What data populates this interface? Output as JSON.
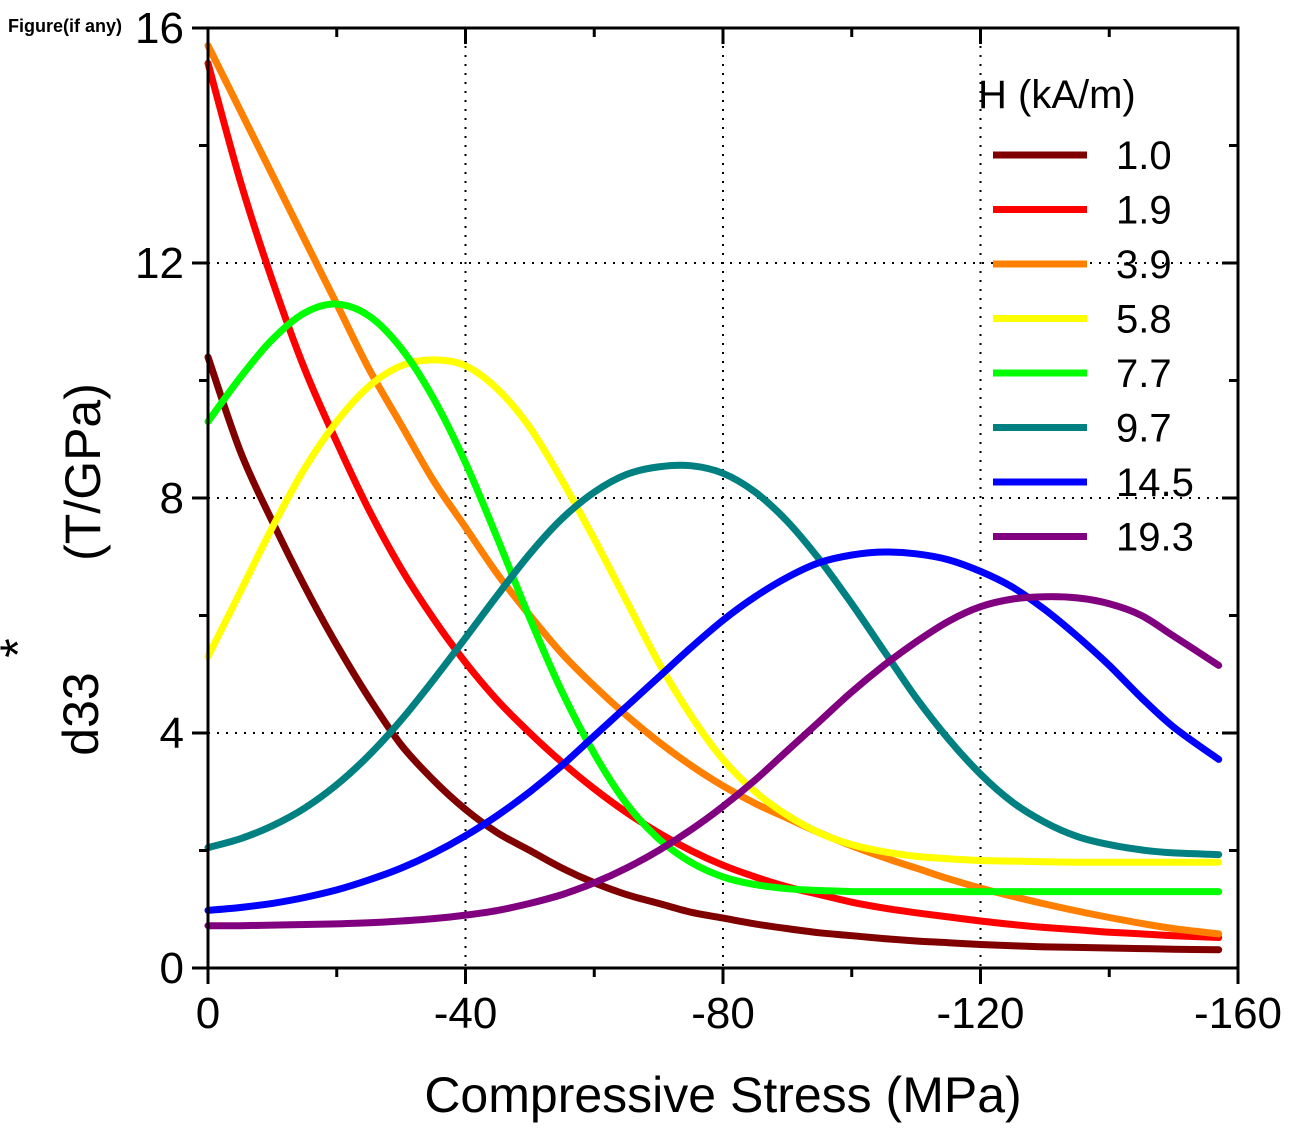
{
  "figure_label": "Figure(if any)",
  "chart_data": {
    "type": "line",
    "title": "",
    "xlabel": "Compressive Stress (MPa)",
    "ylabel_main": "d33",
    "ylabel_superscript": "*",
    "ylabel_unit": "(T/GPa)",
    "xlim": [
      0,
      -160
    ],
    "ylim": [
      0,
      16
    ],
    "xticks": [
      0,
      -40,
      -80,
      -120,
      -160
    ],
    "xtick_labels": [
      "0",
      "-40",
      "-80",
      "-120",
      "-160"
    ],
    "yticks": [
      0,
      4,
      8,
      12,
      16
    ],
    "ytick_labels": [
      "0",
      "4",
      "8",
      "12",
      "16"
    ],
    "grid": "dotted",
    "legend_title": "H (kA/m)",
    "legend_position": "top-right",
    "series": [
      {
        "name": "1.0",
        "color": "#800000",
        "x": [
          0,
          -5,
          -10,
          -15,
          -20,
          -25,
          -30,
          -35,
          -40,
          -45,
          -50,
          -55,
          -60,
          -65,
          -70,
          -75,
          -80,
          -85,
          -90,
          -95,
          -100,
          -105,
          -110,
          -115,
          -120,
          -125,
          -130,
          -135,
          -140,
          -145,
          -150,
          -157
        ],
        "y": [
          10.4,
          8.8,
          7.6,
          6.5,
          5.5,
          4.6,
          3.8,
          3.2,
          2.7,
          2.3,
          2.0,
          1.7,
          1.45,
          1.25,
          1.1,
          0.95,
          0.85,
          0.75,
          0.67,
          0.6,
          0.55,
          0.5,
          0.46,
          0.43,
          0.4,
          0.38,
          0.36,
          0.35,
          0.34,
          0.33,
          0.32,
          0.31
        ]
      },
      {
        "name": "1.9",
        "color": "#ff0000",
        "x": [
          0,
          -5,
          -10,
          -15,
          -20,
          -25,
          -30,
          -35,
          -40,
          -45,
          -50,
          -55,
          -60,
          -65,
          -70,
          -75,
          -80,
          -85,
          -90,
          -95,
          -100,
          -105,
          -110,
          -115,
          -120,
          -125,
          -130,
          -135,
          -140,
          -145,
          -150,
          -157
        ],
        "y": [
          15.4,
          13.4,
          11.7,
          10.2,
          8.95,
          7.8,
          6.8,
          5.95,
          5.2,
          4.55,
          4.0,
          3.5,
          3.05,
          2.65,
          2.3,
          2.0,
          1.75,
          1.55,
          1.38,
          1.25,
          1.12,
          1.02,
          0.94,
          0.87,
          0.8,
          0.74,
          0.69,
          0.65,
          0.61,
          0.58,
          0.55,
          0.52
        ]
      },
      {
        "name": "3.9",
        "color": "#ff8000",
        "x": [
          0,
          -5,
          -10,
          -15,
          -20,
          -25,
          -30,
          -35,
          -40,
          -45,
          -50,
          -55,
          -60,
          -65,
          -70,
          -75,
          -80,
          -85,
          -90,
          -95,
          -100,
          -105,
          -110,
          -115,
          -120,
          -125,
          -130,
          -135,
          -140,
          -145,
          -150,
          -157
        ],
        "y": [
          15.7,
          14.6,
          13.5,
          12.4,
          11.3,
          10.2,
          9.25,
          8.3,
          7.5,
          6.7,
          6.0,
          5.35,
          4.8,
          4.3,
          3.85,
          3.45,
          3.1,
          2.8,
          2.55,
          2.3,
          2.08,
          1.88,
          1.7,
          1.52,
          1.36,
          1.22,
          1.09,
          0.97,
          0.86,
          0.76,
          0.67,
          0.58
        ]
      },
      {
        "name": "5.8",
        "color": "#ffff00",
        "x": [
          0,
          -5,
          -10,
          -15,
          -20,
          -25,
          -30,
          -35,
          -40,
          -45,
          -50,
          -55,
          -60,
          -65,
          -70,
          -75,
          -80,
          -85,
          -90,
          -95,
          -100,
          -105,
          -110,
          -115,
          -120,
          -125,
          -130,
          -135,
          -140,
          -145,
          -150,
          -157
        ],
        "y": [
          5.3,
          6.4,
          7.5,
          8.5,
          9.3,
          9.9,
          10.25,
          10.35,
          10.25,
          9.85,
          9.2,
          8.3,
          7.3,
          6.25,
          5.2,
          4.3,
          3.55,
          3.0,
          2.6,
          2.3,
          2.1,
          1.98,
          1.9,
          1.86,
          1.83,
          1.82,
          1.81,
          1.8,
          1.8,
          1.8,
          1.8,
          1.8
        ]
      },
      {
        "name": "7.7",
        "color": "#00ff00",
        "x": [
          0,
          -5,
          -10,
          -15,
          -20,
          -25,
          -30,
          -35,
          -40,
          -45,
          -50,
          -55,
          -60,
          -65,
          -70,
          -75,
          -80,
          -85,
          -90,
          -95,
          -100,
          -105,
          -110,
          -115,
          -120,
          -125,
          -130,
          -135,
          -140,
          -145,
          -150,
          -157
        ],
        "y": [
          9.3,
          10.05,
          10.7,
          11.15,
          11.3,
          11.1,
          10.55,
          9.7,
          8.6,
          7.3,
          5.95,
          4.7,
          3.65,
          2.8,
          2.2,
          1.8,
          1.55,
          1.42,
          1.35,
          1.32,
          1.3,
          1.3,
          1.3,
          1.3,
          1.3,
          1.3,
          1.3,
          1.3,
          1.3,
          1.3,
          1.3,
          1.3
        ]
      },
      {
        "name": "9.7",
        "color": "#008080",
        "x": [
          0,
          -5,
          -10,
          -15,
          -20,
          -25,
          -30,
          -35,
          -40,
          -45,
          -50,
          -55,
          -60,
          -65,
          -70,
          -75,
          -80,
          -85,
          -90,
          -95,
          -100,
          -105,
          -110,
          -115,
          -120,
          -125,
          -130,
          -135,
          -140,
          -145,
          -150,
          -157
        ],
        "y": [
          2.05,
          2.2,
          2.42,
          2.72,
          3.12,
          3.62,
          4.22,
          4.9,
          5.62,
          6.35,
          7.05,
          7.65,
          8.1,
          8.4,
          8.53,
          8.55,
          8.42,
          8.1,
          7.6,
          6.95,
          6.2,
          5.4,
          4.6,
          3.9,
          3.3,
          2.82,
          2.48,
          2.24,
          2.1,
          2.01,
          1.96,
          1.93
        ]
      },
      {
        "name": "14.5",
        "color": "#0000ff",
        "x": [
          0,
          -5,
          -10,
          -15,
          -20,
          -25,
          -30,
          -35,
          -40,
          -45,
          -50,
          -55,
          -60,
          -65,
          -70,
          -75,
          -80,
          -85,
          -90,
          -95,
          -100,
          -105,
          -110,
          -115,
          -120,
          -125,
          -130,
          -135,
          -140,
          -145,
          -150,
          -157
        ],
        "y": [
          0.98,
          1.03,
          1.1,
          1.2,
          1.33,
          1.5,
          1.7,
          1.95,
          2.25,
          2.6,
          3.0,
          3.45,
          3.95,
          4.45,
          4.95,
          5.45,
          5.92,
          6.32,
          6.65,
          6.9,
          7.03,
          7.08,
          7.05,
          6.95,
          6.75,
          6.48,
          6.1,
          5.65,
          5.15,
          4.6,
          4.1,
          3.55
        ]
      },
      {
        "name": "19.3",
        "color": "#800080",
        "x": [
          0,
          -5,
          -10,
          -15,
          -20,
          -25,
          -30,
          -35,
          -40,
          -45,
          -50,
          -55,
          -60,
          -65,
          -70,
          -75,
          -80,
          -85,
          -90,
          -95,
          -100,
          -105,
          -110,
          -115,
          -120,
          -125,
          -130,
          -135,
          -140,
          -145,
          -150,
          -157
        ],
        "y": [
          0.72,
          0.72,
          0.73,
          0.74,
          0.75,
          0.77,
          0.8,
          0.84,
          0.9,
          0.98,
          1.1,
          1.25,
          1.45,
          1.7,
          2.0,
          2.35,
          2.75,
          3.2,
          3.7,
          4.2,
          4.7,
          5.15,
          5.55,
          5.9,
          6.15,
          6.28,
          6.32,
          6.3,
          6.2,
          6.0,
          5.65,
          5.15
        ]
      }
    ]
  }
}
